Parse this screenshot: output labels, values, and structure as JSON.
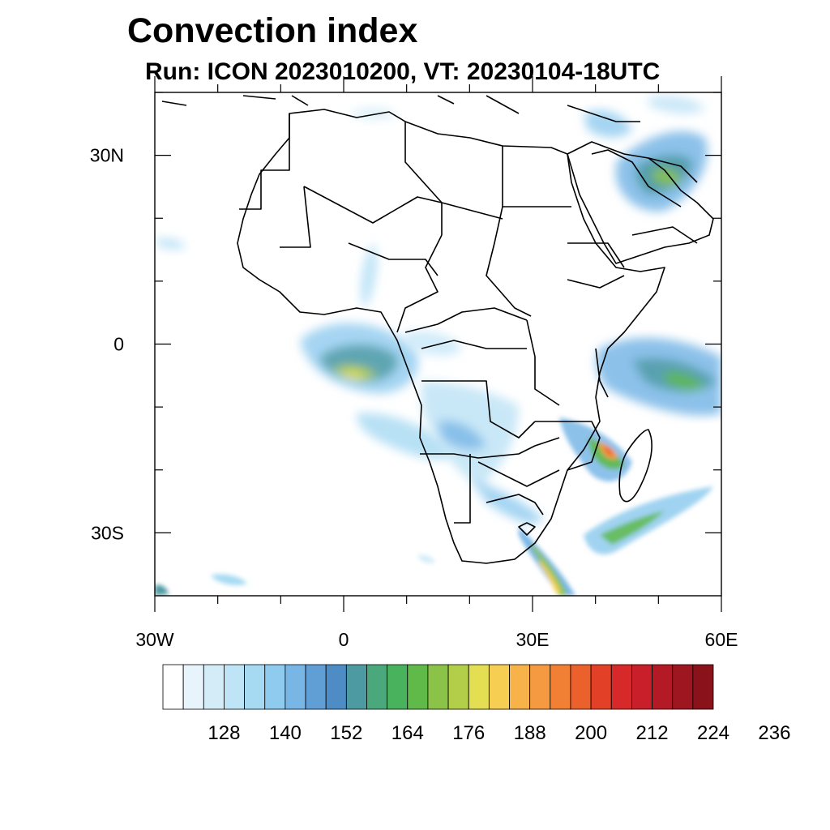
{
  "title": "Convection index",
  "subtitle": "Run: ICON 2023010200,  VT: 20230104-18UTC",
  "map": {
    "lat_ticks": [
      {
        "value": 30,
        "label": "30N"
      },
      {
        "value": 0,
        "label": "0"
      },
      {
        "value": -30,
        "label": "30S"
      }
    ],
    "lon_ticks": [
      {
        "value": -30,
        "label": "30W"
      },
      {
        "value": 0,
        "label": "0"
      },
      {
        "value": 30,
        "label": "30E"
      },
      {
        "value": 60,
        "label": "60E"
      }
    ],
    "lon_range": [
      -30,
      60
    ],
    "lat_range": [
      -40,
      40
    ]
  },
  "colorbar": {
    "colors": [
      "#ffffff",
      "#e8f4fb",
      "#d3ecf8",
      "#bfe4f6",
      "#a6daf3",
      "#8fcbef",
      "#78b6e6",
      "#5f9fd6",
      "#4d8cc4",
      "#4e9aa2",
      "#4aa87c",
      "#48b25c",
      "#5fba4a",
      "#8ac348",
      "#b3cf4a",
      "#e4df52",
      "#f6cf52",
      "#f7b24a",
      "#f59a40",
      "#f17f34",
      "#ec602c",
      "#e24128",
      "#d8292a",
      "#c81f2a",
      "#b41a26",
      "#9e1620",
      "#8a131b"
    ],
    "labels": [
      "128",
      "140",
      "152",
      "164",
      "176",
      "188",
      "200",
      "212",
      "224",
      "236"
    ]
  }
}
